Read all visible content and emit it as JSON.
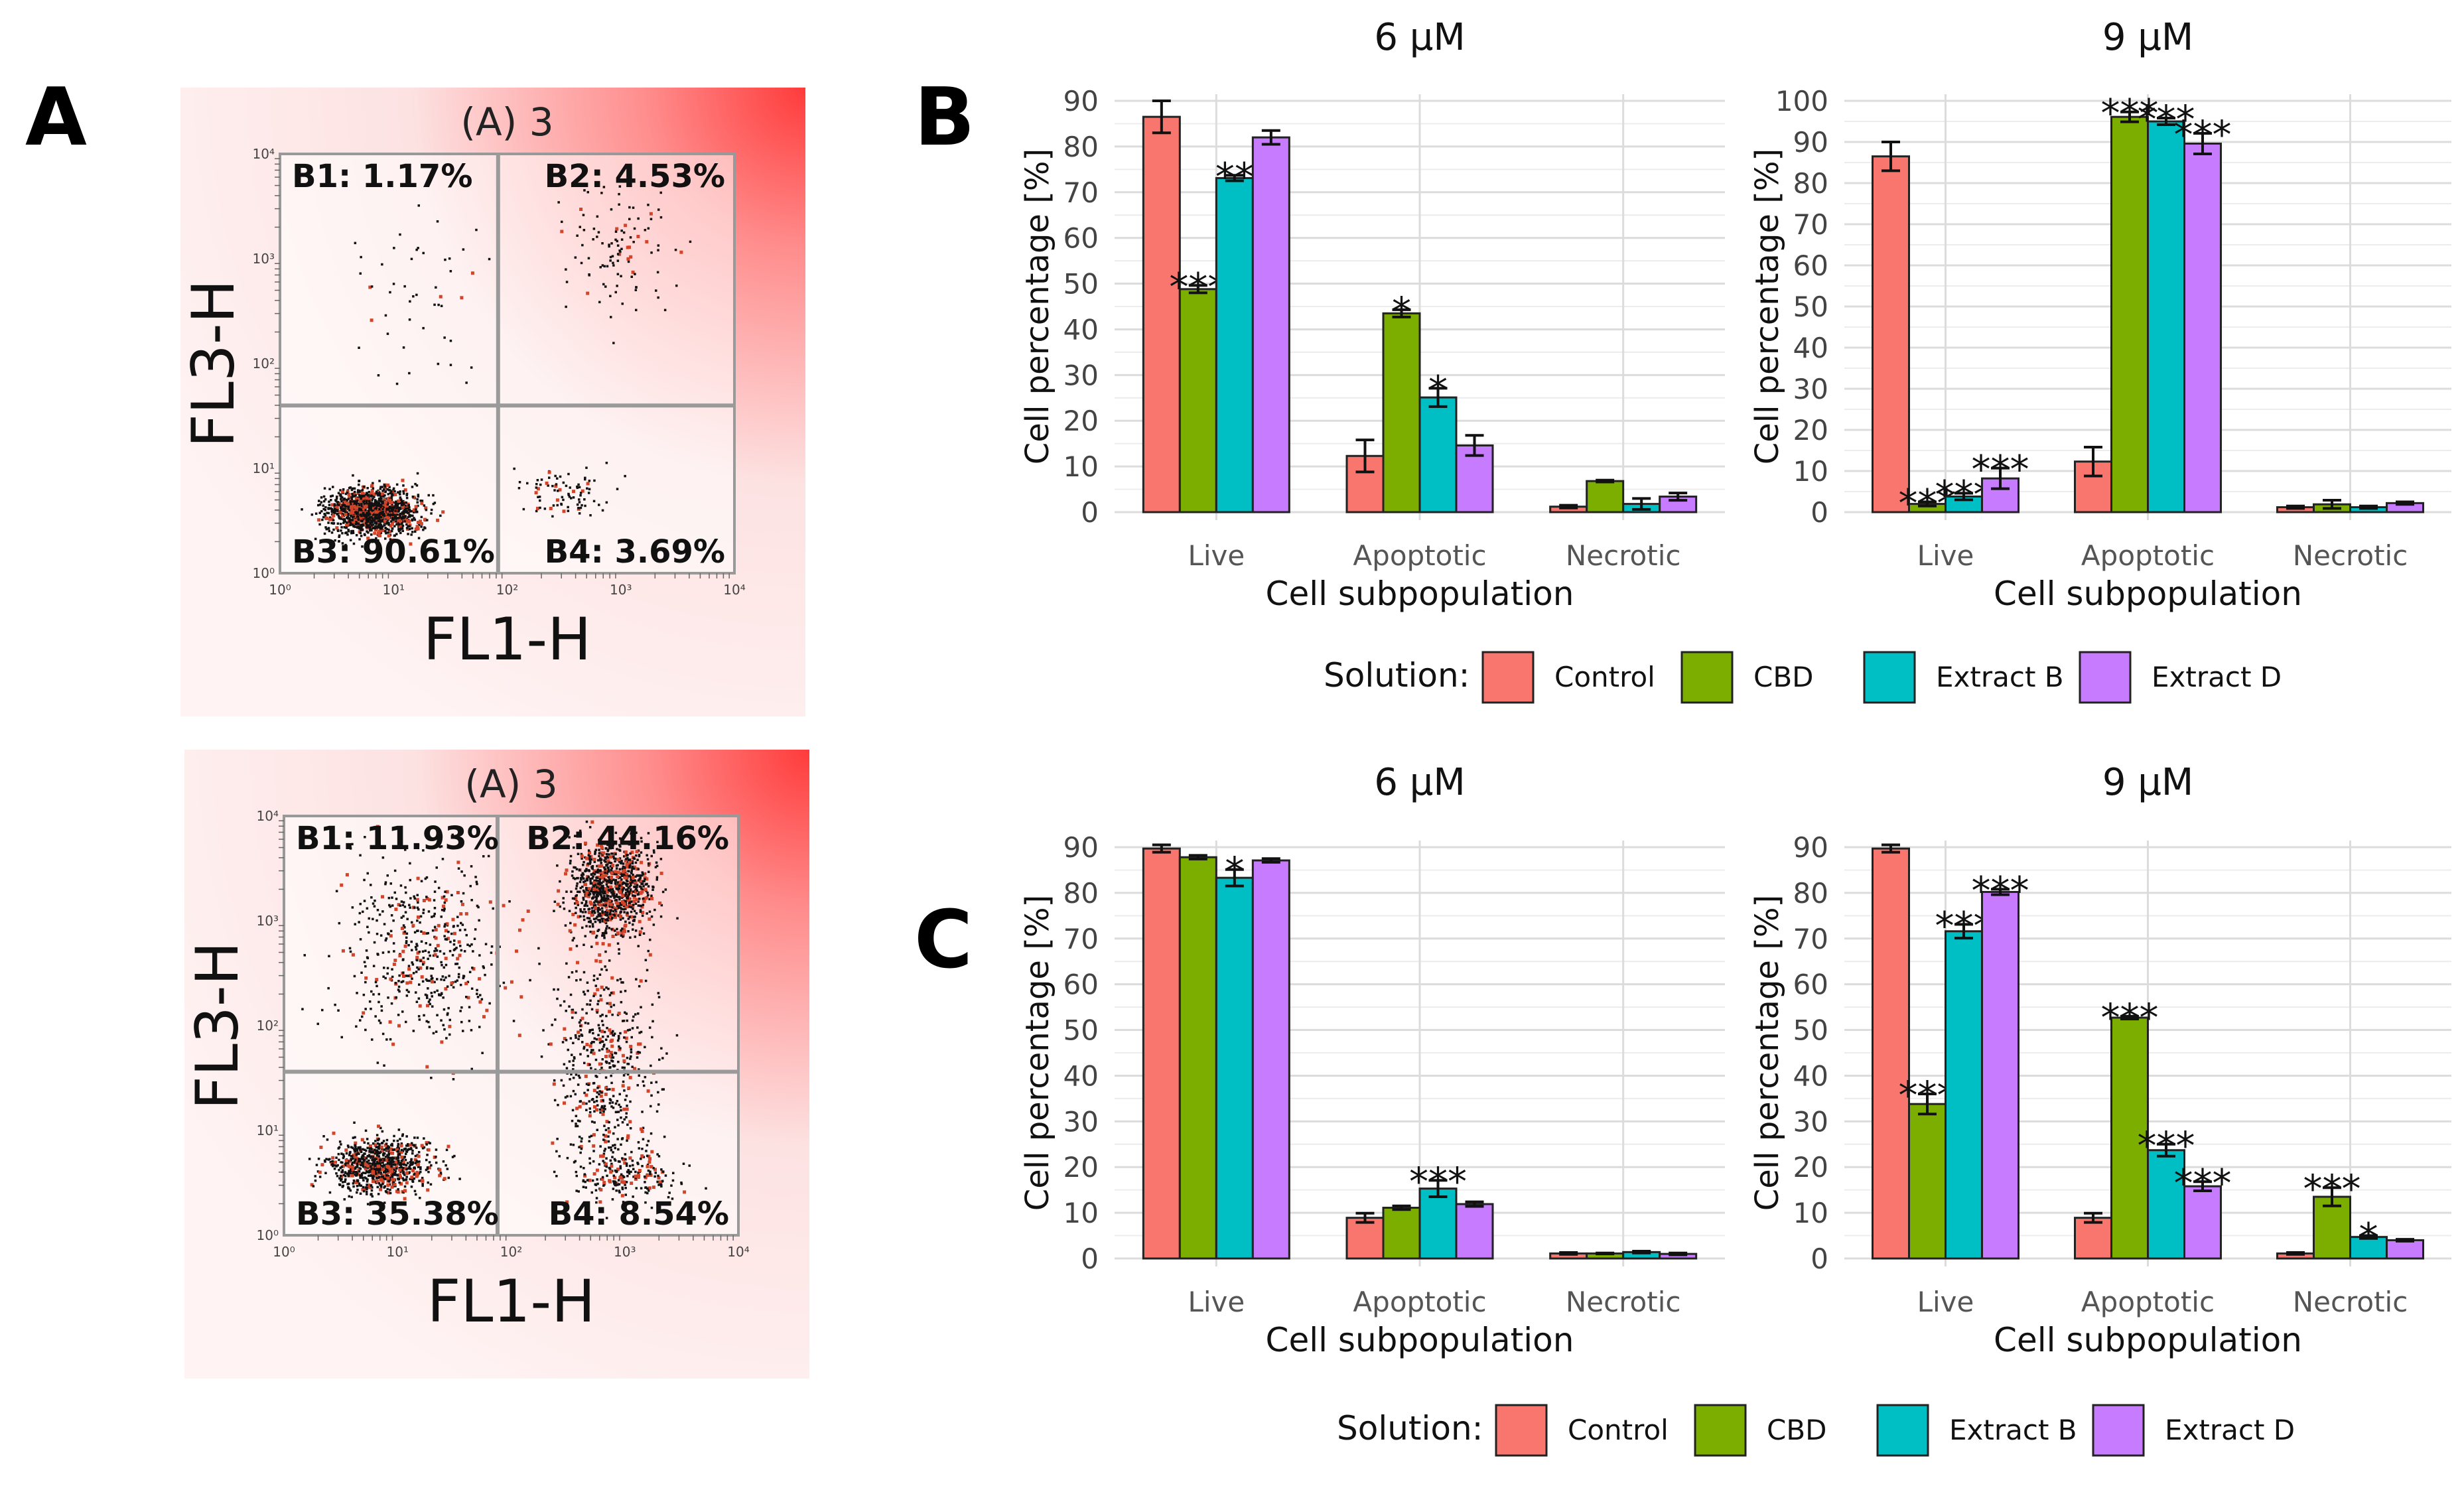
{
  "panel_letters": [
    "A",
    "B",
    "C"
  ],
  "flow_plots": [
    {
      "title": "(A) 3",
      "xlabel": "FL1-H",
      "ylabel": "FL3-H",
      "quadrants": [
        "B1: 1.17%",
        "B2: 4.53%",
        "B3: 90.61%",
        "B4: 3.69%"
      ],
      "ticks": [
        "10⁰",
        "10¹",
        "10²",
        "10³",
        "10⁴"
      ]
    },
    {
      "title": "(A) 3",
      "xlabel": "FL1-H",
      "ylabel": "FL3-H",
      "quadrants": [
        "B1: 11.93%",
        "B2: 44.16%",
        "B3: 35.38%",
        "B4: 8.54%"
      ],
      "ticks": [
        "10⁰",
        "10¹",
        "10²",
        "10³",
        "10⁴"
      ]
    }
  ],
  "legend": {
    "title": "Solution:",
    "items": [
      "Control",
      "CBD",
      "Extract B",
      "Extract D"
    ]
  },
  "colors": {
    "Control": "#f8766d",
    "CBD": "#7cae00",
    "Extract B": "#00bfc4",
    "Extract D": "#c77cff",
    "flow_bg": "#fbe3e3",
    "flow_corner": "#ff4a4a"
  },
  "chart_data": [
    {
      "id": "B-6",
      "type": "bar",
      "title": "6 μM",
      "xlabel": "Cell subpopulation",
      "ylabel": "Cell percentage [%]",
      "categories": [
        "Live",
        "Apoptotic",
        "Necrotic"
      ],
      "ylim": [
        0,
        90
      ],
      "yticks": [
        0,
        10,
        20,
        30,
        40,
        50,
        60,
        70,
        80,
        90
      ],
      "series": [
        {
          "name": "Control",
          "values": [
            86.5,
            12.3,
            1.2
          ],
          "errors": [
            3.5,
            3.5,
            0.3
          ],
          "stars": [
            "",
            "",
            ""
          ]
        },
        {
          "name": "CBD",
          "values": [
            48.8,
            43.5,
            6.8
          ],
          "errors": [
            0.8,
            0.8,
            0.2
          ],
          "stars": [
            "***",
            "*",
            ""
          ]
        },
        {
          "name": "Extract B",
          "values": [
            73.1,
            25.1,
            1.8
          ],
          "errors": [
            0.6,
            2.0,
            1.2
          ],
          "stars": [
            "**",
            "*",
            ""
          ]
        },
        {
          "name": "Extract D",
          "values": [
            82.0,
            14.6,
            3.4
          ],
          "errors": [
            1.5,
            2.2,
            0.8
          ],
          "stars": [
            "",
            "",
            ""
          ]
        }
      ]
    },
    {
      "id": "B-9",
      "type": "bar",
      "title": "9 μM",
      "xlabel": "Cell subpopulation",
      "ylabel": "Cell percentage [%]",
      "categories": [
        "Live",
        "Apoptotic",
        "Necrotic"
      ],
      "ylim": [
        0,
        100
      ],
      "yticks": [
        0,
        10,
        20,
        30,
        40,
        50,
        60,
        70,
        80,
        90,
        100
      ],
      "series": [
        {
          "name": "Control",
          "values": [
            86.5,
            12.3,
            1.2
          ],
          "errors": [
            3.5,
            3.5,
            0.3
          ],
          "stars": [
            "",
            "",
            ""
          ]
        },
        {
          "name": "CBD",
          "values": [
            2.0,
            96.1,
            1.9
          ],
          "errors": [
            0.5,
            1.2,
            1.0
          ],
          "stars": [
            "***",
            "***",
            ""
          ]
        },
        {
          "name": "Extract B",
          "values": [
            3.8,
            95.0,
            1.2
          ],
          "errors": [
            0.8,
            0.8,
            0.3
          ],
          "stars": [
            "***",
            "***",
            ""
          ]
        },
        {
          "name": "Extract D",
          "values": [
            8.2,
            89.6,
            2.2
          ],
          "errors": [
            2.5,
            2.5,
            0.3
          ],
          "stars": [
            "***",
            "***",
            ""
          ]
        }
      ]
    },
    {
      "id": "C-6",
      "type": "bar",
      "title": "6 μM",
      "xlabel": "Cell subpopulation",
      "ylabel": "Cell percentage [%]",
      "categories": [
        "Live",
        "Apoptotic",
        "Necrotic"
      ],
      "ylim": [
        0,
        90
      ],
      "yticks": [
        0,
        10,
        20,
        30,
        40,
        50,
        60,
        70,
        80,
        90
      ],
      "series": [
        {
          "name": "Control",
          "values": [
            89.7,
            8.9,
            1.1
          ],
          "errors": [
            0.8,
            1.0,
            0.2
          ],
          "stars": [
            "",
            "",
            ""
          ]
        },
        {
          "name": "CBD",
          "values": [
            87.8,
            11.1,
            1.1
          ],
          "errors": [
            0.4,
            0.4,
            0.1
          ],
          "stars": [
            "",
            "",
            ""
          ]
        },
        {
          "name": "Extract B",
          "values": [
            83.3,
            15.3,
            1.4
          ],
          "errors": [
            1.8,
            1.8,
            0.2
          ],
          "stars": [
            "*",
            "***",
            ""
          ]
        },
        {
          "name": "Extract D",
          "values": [
            87.1,
            11.9,
            1.0
          ],
          "errors": [
            0.4,
            0.5,
            0.2
          ],
          "stars": [
            "",
            "",
            ""
          ]
        }
      ]
    },
    {
      "id": "C-9",
      "type": "bar",
      "title": "9 μM",
      "xlabel": "Cell subpopulation",
      "ylabel": "Cell percentage [%]",
      "categories": [
        "Live",
        "Apoptotic",
        "Necrotic"
      ],
      "ylim": [
        0,
        90
      ],
      "yticks": [
        0,
        10,
        20,
        30,
        40,
        50,
        60,
        70,
        80,
        90
      ],
      "series": [
        {
          "name": "Control",
          "values": [
            89.7,
            8.9,
            1.1
          ],
          "errors": [
            0.8,
            1.0,
            0.2
          ],
          "stars": [
            "",
            "",
            ""
          ]
        },
        {
          "name": "CBD",
          "values": [
            33.8,
            52.7,
            13.5
          ],
          "errors": [
            2.2,
            0.3,
            2.0
          ],
          "stars": [
            "***",
            "***",
            "***"
          ]
        },
        {
          "name": "Extract B",
          "values": [
            71.6,
            23.7,
            4.7
          ],
          "errors": [
            1.5,
            1.3,
            0.3
          ],
          "stars": [
            "***",
            "***",
            "*"
          ]
        },
        {
          "name": "Extract D",
          "values": [
            80.2,
            15.8,
            4.0
          ],
          "errors": [
            0.6,
            1.0,
            0.2
          ],
          "stars": [
            "***",
            "***",
            ""
          ]
        }
      ]
    }
  ]
}
